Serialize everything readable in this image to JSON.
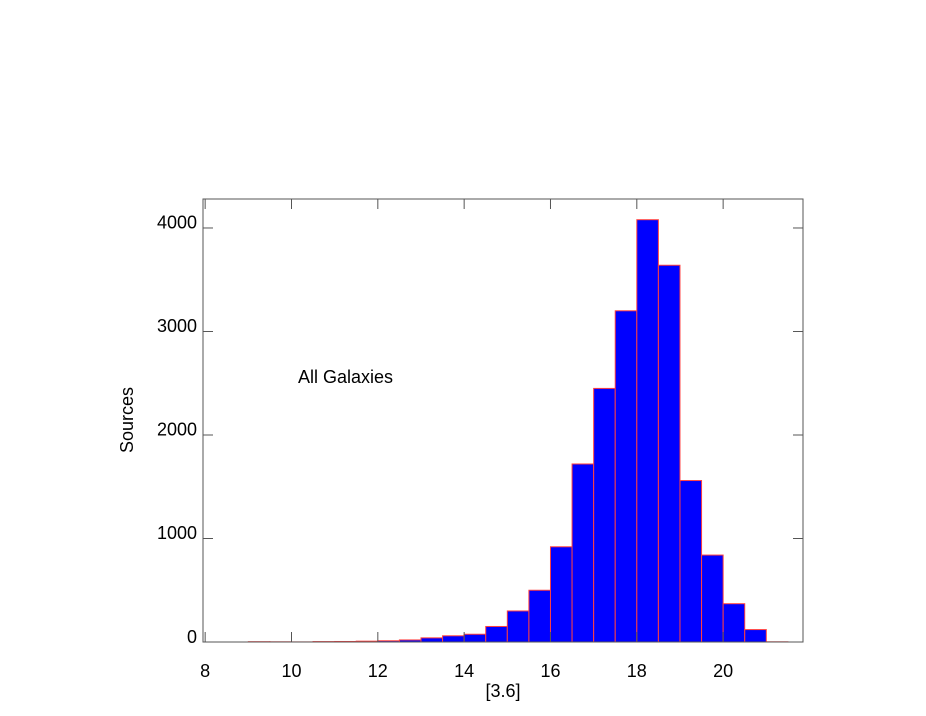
{
  "chart_data": {
    "type": "histogram",
    "xlabel": "[3.6]",
    "ylabel": "Sources",
    "annotation": "All Galaxies",
    "bins": [
      8.5,
      9,
      9.5,
      10,
      10.5,
      11,
      11.5,
      12,
      12.5,
      13,
      13.5,
      14,
      14.5,
      15,
      15.5,
      16,
      16.5,
      17,
      17.5,
      18,
      18.5,
      19,
      19.5,
      20,
      20.5,
      21,
      21.5
    ],
    "counts": [
      0,
      3,
      2,
      1,
      4,
      5,
      8,
      12,
      20,
      40,
      60,
      75,
      150,
      300,
      500,
      920,
      1720,
      2450,
      3200,
      4080,
      3640,
      1560,
      840,
      370,
      120,
      2
    ],
    "color": "#0000ff",
    "edgecolor": "#ff4040",
    "xlim": [
      7.95,
      21.85
    ],
    "ylim": [
      0,
      4280
    ],
    "xticks": [
      8,
      10,
      12,
      14,
      16,
      18,
      20
    ],
    "yticks": [
      0,
      1000,
      2000,
      3000,
      4000
    ]
  }
}
